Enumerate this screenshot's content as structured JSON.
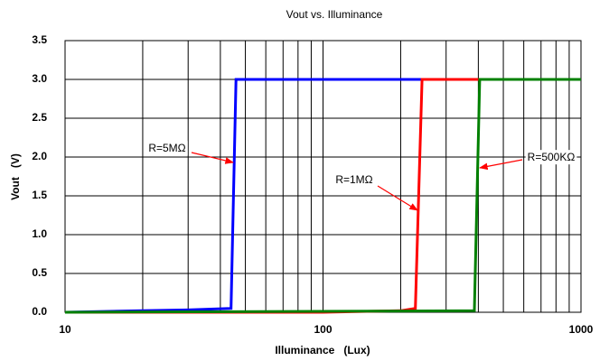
{
  "chart_data": {
    "type": "line",
    "title": "Vout vs. Illuminance",
    "xlabel": "Illuminance   (Lux)",
    "ylabel": "Vout   (V)",
    "xscale": "log",
    "xlim": [
      10,
      1000
    ],
    "xticks": [
      10,
      100,
      1000
    ],
    "ylim": [
      0,
      3.5
    ],
    "yticks": [
      {
        "value": 0,
        "label": "0.0"
      },
      0.5,
      {
        "value": 1,
        "label": "1.0"
      },
      1.5,
      {
        "value": 2,
        "label": "2.0"
      },
      2.5,
      {
        "value": 3,
        "label": "3.0"
      },
      3.5
    ],
    "grid": true,
    "series": [
      {
        "name": "R=5MΩ",
        "color": "#0000ff",
        "x": [
          10,
          20,
          30,
          44,
          46,
          1000
        ],
        "values": [
          0,
          0.02,
          0.03,
          0.05,
          3.0,
          3.0
        ]
      },
      {
        "name": "R=1MΩ",
        "color": "#ff0000",
        "x": [
          10,
          100,
          200,
          228,
          242,
          1000
        ],
        "values": [
          0,
          0,
          0.02,
          0.05,
          3.0,
          3.0
        ]
      },
      {
        "name": "R=500KΩ",
        "color": "#008000",
        "x": [
          10,
          386,
          405,
          1000
        ],
        "values": [
          0,
          0.02,
          3.0,
          3.0
        ]
      }
    ]
  }
}
